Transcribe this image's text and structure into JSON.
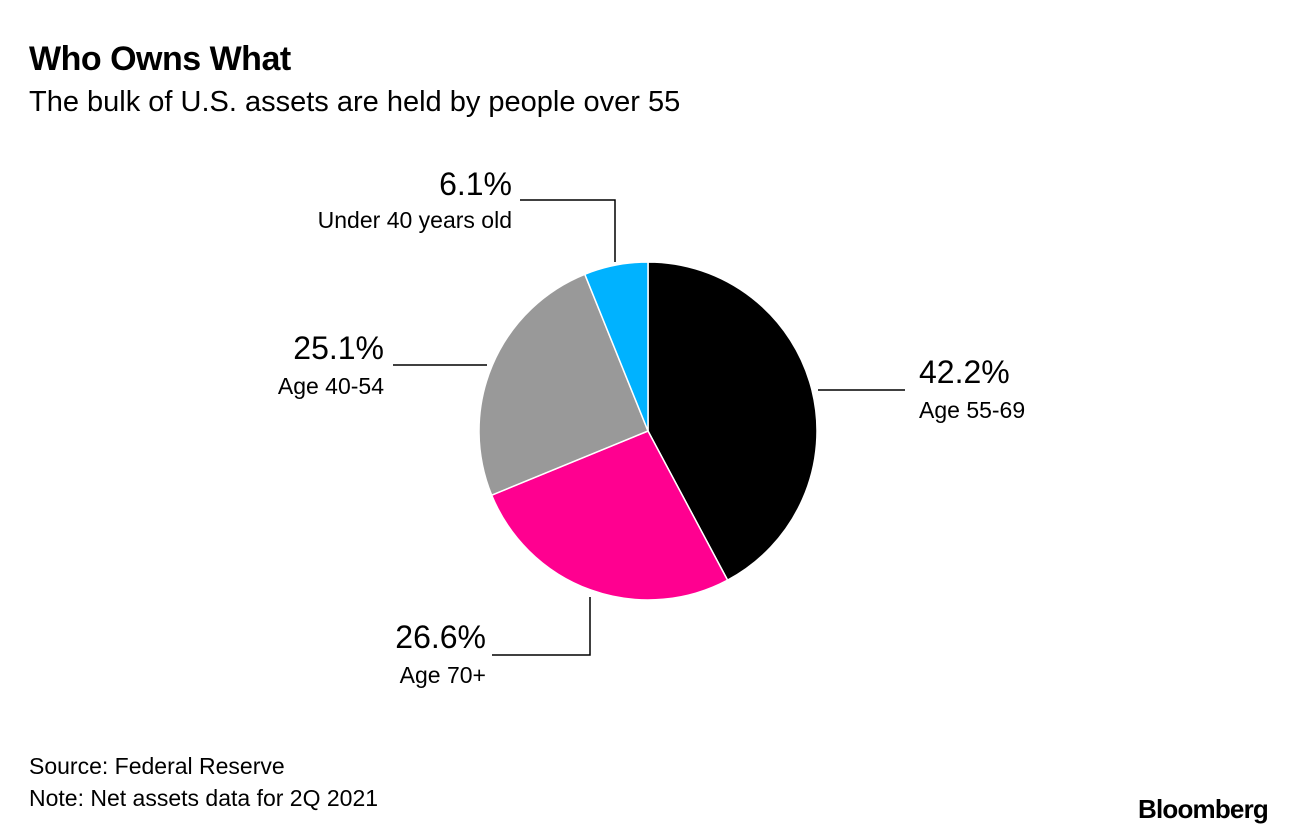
{
  "header": {
    "title": "Who Owns What",
    "subtitle": "The bulk of U.S. assets are held by people over 55"
  },
  "chart_data": {
    "type": "pie",
    "title": "Who Owns What",
    "subtitle": "The bulk of U.S. assets are held by people over 55",
    "unit": "%",
    "slices": [
      {
        "label": "Age 55-69",
        "value": 42.2,
        "display": "42.2%",
        "color": "#000000"
      },
      {
        "label": "Age 70+",
        "value": 26.6,
        "display": "26.6%",
        "color": "#ff0090"
      },
      {
        "label": "Age 40-54",
        "value": 25.1,
        "display": "25.1%",
        "color": "#999999"
      },
      {
        "label": "Under 40 years old",
        "value": 6.1,
        "display": "6.1%",
        "color": "#00b2ff"
      }
    ]
  },
  "footer": {
    "source": "Source: Federal Reserve",
    "note": "Note: Net assets data for 2Q 2021",
    "brand": "Bloomberg"
  }
}
